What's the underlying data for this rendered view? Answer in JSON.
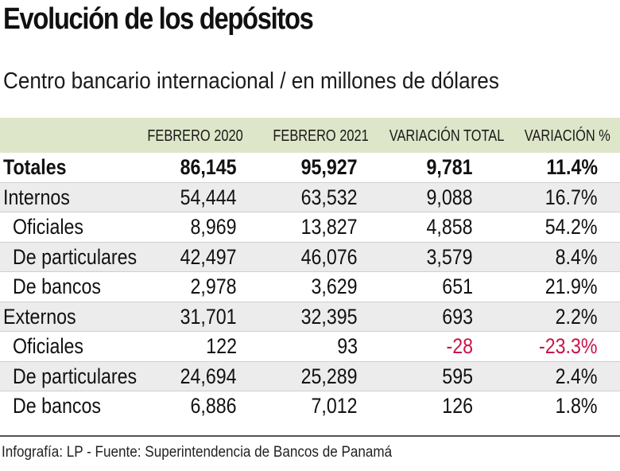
{
  "header": {
    "title": "Evolución de los depósitos",
    "subtitle": "Centro bancario internacional / en millones de dólares"
  },
  "table": {
    "columns": [
      "",
      "FEBRERO 2020",
      "FEBRERO 2021",
      "VARIACIÓN TOTAL",
      "VARIACIÓN %"
    ],
    "rows": [
      {
        "label": "Totales",
        "feb2020": "86,145",
        "feb2021": "95,927",
        "var_total": "9,781",
        "var_pct": "11.4%"
      },
      {
        "label": "Internos",
        "feb2020": "54,444",
        "feb2021": "63,532",
        "var_total": "9,088",
        "var_pct": "16.7%"
      },
      {
        "label": "Oficiales",
        "feb2020": "8,969",
        "feb2021": "13,827",
        "var_total": "4,858",
        "var_pct": "54.2%"
      },
      {
        "label": "De particulares",
        "feb2020": "42,497",
        "feb2021": "46,076",
        "var_total": "3,579",
        "var_pct": "8.4%"
      },
      {
        "label": "De bancos",
        "feb2020": "2,978",
        "feb2021": "3,629",
        "var_total": "651",
        "var_pct": "21.9%"
      },
      {
        "label": "Externos",
        "feb2020": "31,701",
        "feb2021": "32,395",
        "var_total": "693",
        "var_pct": "2.2%"
      },
      {
        "label": "Oficiales",
        "feb2020": "122",
        "feb2021": "93",
        "var_total": "-28",
        "var_pct": "-23.3%"
      },
      {
        "label": "De particulares",
        "feb2020": "24,694",
        "feb2021": "25,289",
        "var_total": "595",
        "var_pct": "2.4%"
      },
      {
        "label": "De bancos",
        "feb2020": "6,886",
        "feb2021": "7,012",
        "var_total": "126",
        "var_pct": "1.8%"
      }
    ]
  },
  "colors": {
    "header_bg": "#dde6c8",
    "shade_row": "#ececec",
    "negative": "#c8154a"
  },
  "footer": {
    "credit": "Infografía: LP - Fuente: Superintendencia de Bancos de Panamá"
  }
}
